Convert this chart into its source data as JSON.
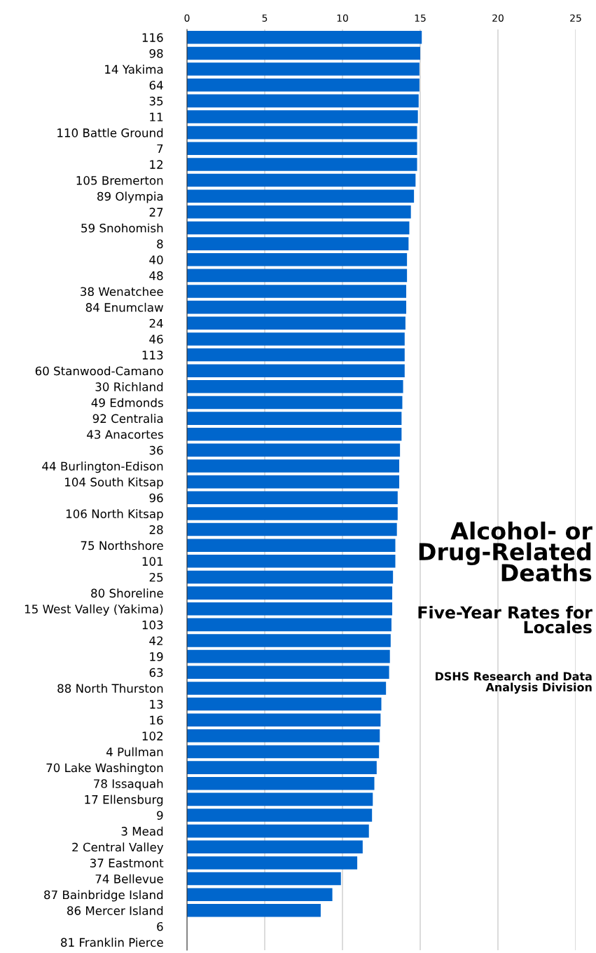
{
  "chart_data": {
    "type": "bar",
    "orientation": "horizontal",
    "title": "Alcohol- or\nDrug-Related\nDeaths",
    "subtitle": "Five-Year Rates for\nLocales",
    "annotations": [
      "DSHS Research and Data\nAnalysis Division"
    ],
    "categories": [
      "116",
      "98",
      "14 Yakima",
      "64",
      "35",
      "11",
      "110 Battle Ground",
      "7",
      "12",
      "105 Bremerton",
      "89 Olympia",
      "27",
      "59 Snohomish",
      "8",
      "40",
      "48",
      "38 Wenatchee",
      "84 Enumclaw",
      "24",
      "46",
      "113",
      "60 Stanwood-Camano",
      "30 Richland",
      "49 Edmonds",
      "92 Centralia",
      "43 Anacortes",
      "36",
      "44 Burlington-Edison",
      "104 South Kitsap",
      "96",
      "106 North Kitsap",
      "28",
      "75 Northshore",
      "101",
      "25",
      "80 Shoreline",
      "15 West Valley (Yakima)",
      "103",
      "42",
      "19",
      "63",
      "88 North Thurston",
      "13",
      "16",
      "102",
      "4 Pullman",
      "70 Lake Washington",
      "78 Issaquah",
      "17 Ellensburg",
      "9",
      "3 Mead",
      "2 Central Valley",
      "37 Eastmont",
      "74 Bellevue",
      "87 Bainbridge Island",
      "86 Mercer Island",
      "6",
      "81 Franklin Pierce"
    ],
    "values": [
      15.1,
      15.0,
      14.95,
      14.95,
      14.9,
      14.85,
      14.8,
      14.8,
      14.8,
      14.7,
      14.6,
      14.4,
      14.3,
      14.25,
      14.15,
      14.15,
      14.1,
      14.1,
      14.05,
      14.0,
      14.0,
      14.0,
      13.9,
      13.85,
      13.8,
      13.8,
      13.7,
      13.65,
      13.65,
      13.55,
      13.55,
      13.5,
      13.4,
      13.4,
      13.25,
      13.2,
      13.2,
      13.15,
      13.1,
      13.05,
      13.0,
      12.8,
      12.5,
      12.45,
      12.4,
      12.35,
      12.2,
      12.05,
      11.95,
      11.9,
      11.7,
      11.3,
      10.95,
      9.9,
      9.35,
      8.6,
      null,
      null
    ],
    "color": "#0066cc",
    "xlim": [
      0,
      25
    ],
    "xticks": [
      0,
      5,
      10,
      15,
      20,
      25
    ],
    "grid": "x"
  }
}
